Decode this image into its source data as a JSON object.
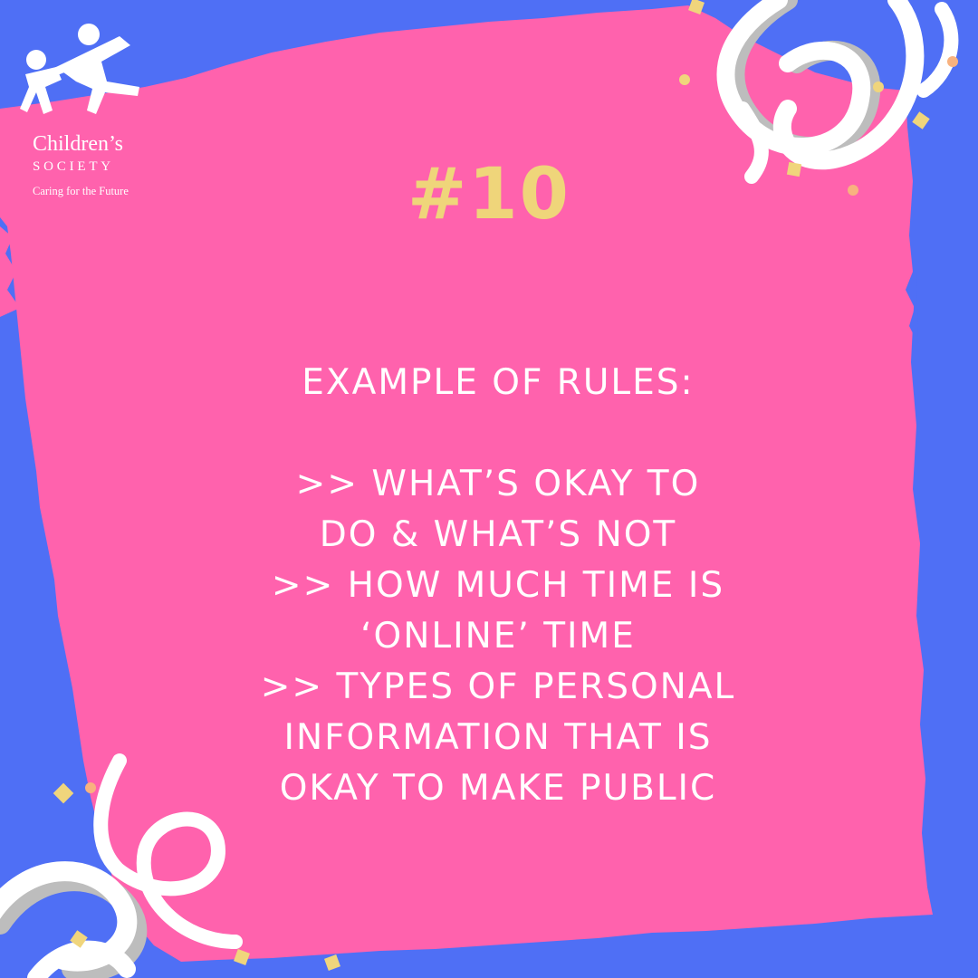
{
  "colors": {
    "background": "#4f6ff5",
    "panel": "#ff62ad",
    "heading": "#efd57a",
    "text": "#ffffff",
    "confetti_yellow": "#f0d57c",
    "confetti_peach": "#f8b27f",
    "streamer_white": "#ffffff",
    "streamer_gray": "#bdbdbd"
  },
  "logo": {
    "icon": "children-holding-hands-icon",
    "line1": "Children’s",
    "line2": "SOCIETY",
    "line3": "Caring for the Future"
  },
  "heading": "#10",
  "subheading": "EXAMPLE OF RULES:",
  "rules_lines": [
    ">> WHAT’S OKAY TO",
    "DO & WHAT’S NOT",
    ">> HOW MUCH TIME IS",
    "‘ONLINE’ TIME",
    ">> TYPES OF PERSONAL",
    "INFORMATION THAT IS",
    "OKAY TO MAKE PUBLIC"
  ]
}
